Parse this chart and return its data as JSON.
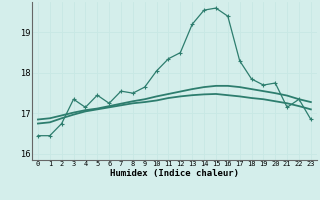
{
  "xlabel": "Humidex (Indice chaleur)",
  "bg_color": "#d4eeeb",
  "grid_color_major": "#c8e8e4",
  "grid_color_minor": "#ddf2ef",
  "line_color": "#2d7d6e",
  "xlim": [
    -0.5,
    23.5
  ],
  "ylim": [
    15.85,
    19.75
  ],
  "yticks": [
    16,
    17,
    18,
    19
  ],
  "xticks": [
    0,
    1,
    2,
    3,
    4,
    5,
    6,
    7,
    8,
    9,
    10,
    11,
    12,
    13,
    14,
    15,
    16,
    17,
    18,
    19,
    20,
    21,
    22,
    23
  ],
  "line1_x": [
    0,
    1,
    2,
    3,
    4,
    5,
    6,
    7,
    8,
    9,
    10,
    11,
    12,
    13,
    14,
    15,
    16,
    17,
    18,
    19,
    20,
    21,
    22,
    23
  ],
  "line1_y": [
    16.45,
    16.45,
    16.75,
    17.35,
    17.15,
    17.45,
    17.25,
    17.55,
    17.5,
    17.65,
    18.05,
    18.35,
    18.5,
    19.2,
    19.55,
    19.6,
    19.4,
    18.3,
    17.85,
    17.7,
    17.75,
    17.15,
    17.35,
    16.85
  ],
  "line2_x": [
    0,
    1,
    2,
    3,
    4,
    5,
    6,
    7,
    8,
    9,
    10,
    11,
    12,
    13,
    14,
    15,
    16,
    17,
    18,
    19,
    20,
    21,
    22,
    23
  ],
  "line2_y": [
    16.75,
    16.78,
    16.88,
    16.97,
    17.05,
    17.1,
    17.15,
    17.2,
    17.25,
    17.28,
    17.32,
    17.38,
    17.42,
    17.45,
    17.47,
    17.48,
    17.45,
    17.42,
    17.38,
    17.35,
    17.3,
    17.25,
    17.18,
    17.1
  ],
  "line3_x": [
    0,
    1,
    2,
    3,
    4,
    5,
    6,
    7,
    8,
    9,
    10,
    11,
    12,
    13,
    14,
    15,
    16,
    17,
    18,
    19,
    20,
    21,
    22,
    23
  ],
  "line3_y": [
    16.85,
    16.88,
    16.95,
    17.02,
    17.08,
    17.12,
    17.18,
    17.24,
    17.3,
    17.35,
    17.42,
    17.48,
    17.54,
    17.6,
    17.65,
    17.68,
    17.68,
    17.65,
    17.6,
    17.55,
    17.5,
    17.44,
    17.35,
    17.28
  ]
}
